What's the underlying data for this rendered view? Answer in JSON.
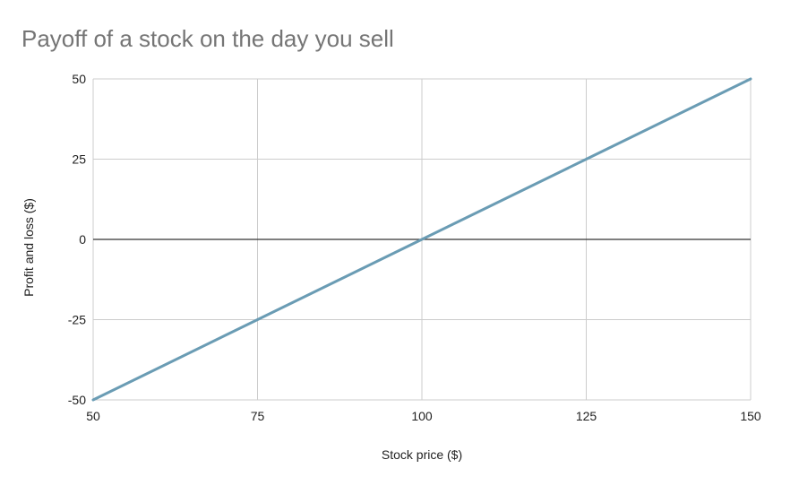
{
  "chart_data": {
    "type": "line",
    "title": "Payoff of a stock on the day you sell",
    "xlabel": "Stock price ($)",
    "ylabel": "Profit and loss ($)",
    "xlim": [
      50,
      150
    ],
    "ylim": [
      -50,
      50
    ],
    "x_ticks": [
      "50",
      "75",
      "100",
      "125",
      "150"
    ],
    "y_ticks": [
      "50",
      "25",
      "0",
      "-25",
      "-50"
    ],
    "grid": true,
    "legend": "none",
    "series": [
      {
        "x": [
          50,
          75,
          100,
          125,
          150
        ],
        "values": [
          -50,
          -25,
          0,
          25,
          50
        ],
        "color": "#6a9cb4"
      }
    ],
    "zero_line_color": "#333333",
    "grid_color": "#cccccc"
  }
}
